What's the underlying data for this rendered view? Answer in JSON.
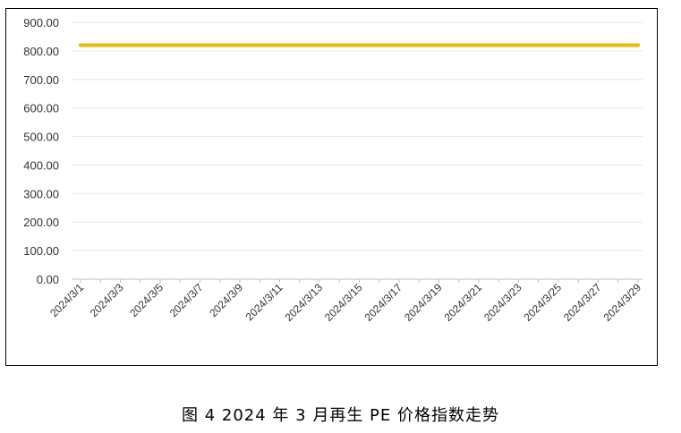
{
  "caption": "图 4  2024 年 3 月再生 PE 价格指数走势",
  "chart_data": {
    "type": "line",
    "title": "",
    "xlabel": "",
    "ylabel": "",
    "ylim": [
      0,
      900
    ],
    "yticks": [
      "0.00",
      "100.00",
      "200.00",
      "300.00",
      "400.00",
      "500.00",
      "600.00",
      "700.00",
      "800.00",
      "900.00"
    ],
    "xtick_labels": [
      "2024/3/1",
      "2024/3/3",
      "2024/3/5",
      "2024/3/7",
      "2024/3/9",
      "2024/3/11",
      "2024/3/13",
      "2024/3/15",
      "2024/3/17",
      "2024/3/19",
      "2024/3/21",
      "2024/3/23",
      "2024/3/25",
      "2024/3/27",
      "2024/3/29"
    ],
    "x": [
      "2024/3/1",
      "2024/3/2",
      "2024/3/3",
      "2024/3/4",
      "2024/3/5",
      "2024/3/6",
      "2024/3/7",
      "2024/3/8",
      "2024/3/9",
      "2024/3/10",
      "2024/3/11",
      "2024/3/12",
      "2024/3/13",
      "2024/3/14",
      "2024/3/15",
      "2024/3/16",
      "2024/3/17",
      "2024/3/18",
      "2024/3/19",
      "2024/3/20",
      "2024/3/21",
      "2024/3/22",
      "2024/3/23",
      "2024/3/24",
      "2024/3/25",
      "2024/3/26",
      "2024/3/27",
      "2024/3/28",
      "2024/3/29"
    ],
    "series": [
      {
        "values": [
          820,
          820,
          820,
          820,
          820,
          820,
          820,
          820,
          820,
          820,
          820,
          820,
          820,
          820,
          820,
          820,
          820,
          820,
          820,
          820,
          820,
          820,
          820,
          820,
          820,
          820,
          820,
          820,
          820
        ],
        "color": "#F2B705"
      }
    ],
    "grid": true,
    "gridColor": "#E6E6E6",
    "legend": "none"
  }
}
